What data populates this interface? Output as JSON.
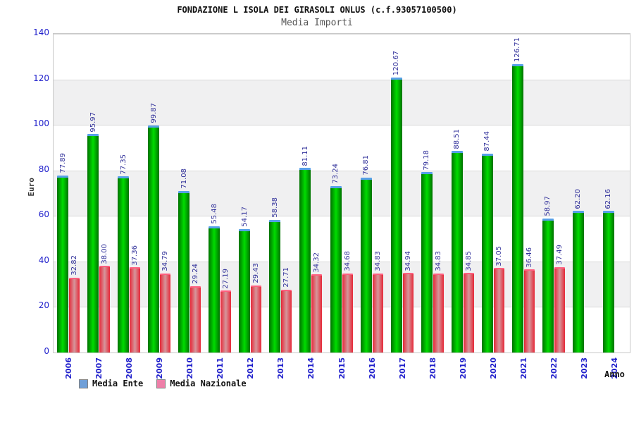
{
  "title": "FONDAZIONE L ISOLA DEI GIRASOLI ONLUS (c.f.93057100500)",
  "subtitle": "Media Importi",
  "chart_data": {
    "type": "bar",
    "categories": [
      "2006",
      "2007",
      "2008",
      "2009",
      "2010",
      "2011",
      "2012",
      "2013",
      "2014",
      "2015",
      "2016",
      "2017",
      "2018",
      "2019",
      "2020",
      "2021",
      "2022",
      "2023",
      "2024"
    ],
    "series": [
      {
        "name": "Media Ente",
        "values": [
          77.89,
          95.97,
          77.35,
          99.87,
          71.08,
          55.48,
          54.17,
          58.38,
          81.11,
          73.24,
          76.81,
          120.67,
          79.18,
          88.51,
          87.44,
          126.71,
          58.97,
          62.2,
          62.16
        ]
      },
      {
        "name": "Media Nazionale",
        "values": [
          32.82,
          38.0,
          37.36,
          34.79,
          29.24,
          27.19,
          29.43,
          27.71,
          34.32,
          34.68,
          34.83,
          34.94,
          34.83,
          34.85,
          37.05,
          36.46,
          37.49,
          null,
          null
        ]
      }
    ],
    "xlabel": "Anno",
    "ylabel": "Euro",
    "ylim": [
      0,
      140
    ],
    "yticks": [
      0,
      20,
      40,
      60,
      80,
      100,
      120,
      140
    ],
    "value_label_decimals": 2,
    "grid": "horizontal-bands-alternating",
    "legend_position": "bottom-left"
  },
  "colors": {
    "tick_label_blue": "#2222cc",
    "value_label_blue": "#30309a",
    "band_gray": "#f0f0f1",
    "grid_line": "#d8d8d8",
    "plot_border": "#c8c8c8",
    "green_bar_edge": "#007200",
    "green_bar_center": "#00dc00",
    "green_bar_cap": "#57a0e8",
    "red_bar_edge": "#e62838",
    "red_bar_center": "#d6969b",
    "red_bar_cap": "#ff5f7f",
    "legend_swatch_ente": "#6f9fd8",
    "legend_swatch_nazionale": "#ee7fa8",
    "title_color": "#111111",
    "subtitle_gray": "#555555"
  }
}
